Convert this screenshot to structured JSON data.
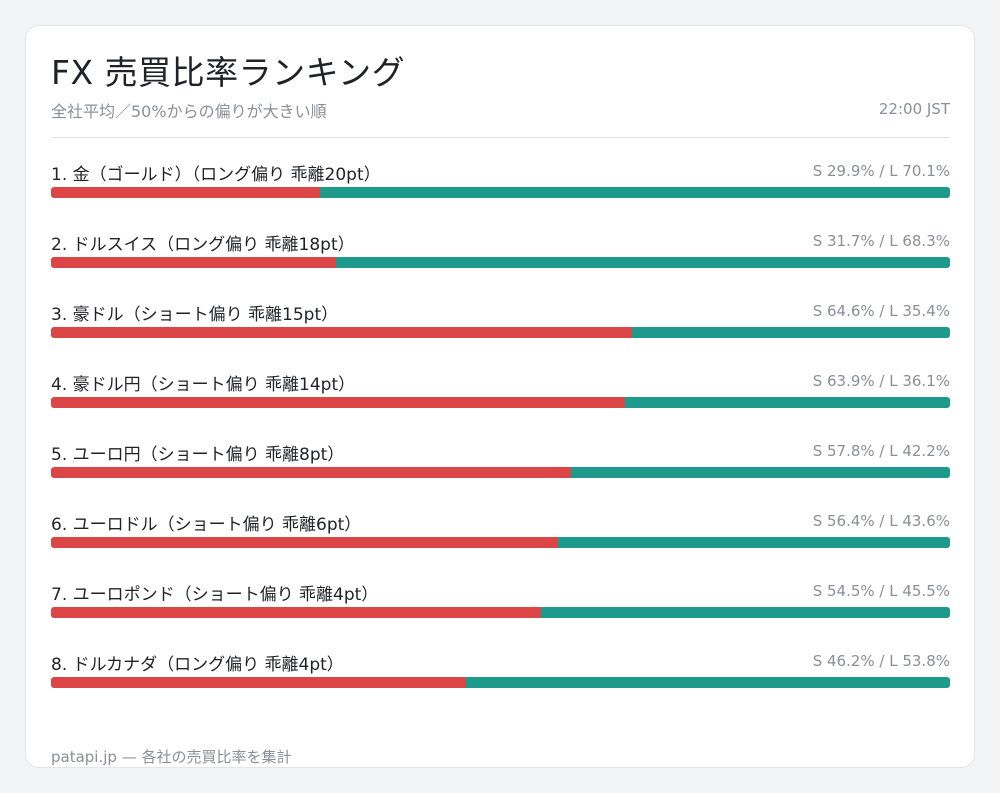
{
  "header": {
    "title": "FX 売買比率ランキング",
    "subtitle": "全社平均／50%からの偏りが大きい順",
    "time": "22:00 JST"
  },
  "colors": {
    "short": "#dc4545",
    "long": "#1e9a8c"
  },
  "chart_data": {
    "type": "bar",
    "orientation": "horizontal-stacked",
    "categories": [
      "1. 金（ゴールド）（ロング偏り 乖離20pt）",
      "2. ドルスイス（ロング偏り 乖離18pt）",
      "3. 豪ドル（ショート偏り 乖離15pt）",
      "4. 豪ドル円（ショート偏り 乖離14pt）",
      "5. ユーロ円（ショート偏り 乖離8pt）",
      "6. ユーロドル（ショート偏り 乖離6pt）",
      "7. ユーロポンド（ショート偏り 乖離4pt）",
      "8. ドルカナダ（ロング偏り 乖離4pt）"
    ],
    "series": [
      {
        "values": [
          29.9,
          31.7,
          64.6,
          63.9,
          57.8,
          56.4,
          54.5,
          46.2
        ]
      },
      {
        "values": [
          70.1,
          68.3,
          35.4,
          36.1,
          42.2,
          43.6,
          45.5,
          53.8
        ]
      }
    ],
    "value_labels": [
      "S 29.9% / L 70.1%",
      "S 31.7% / L 68.3%",
      "S 64.6% / L 35.4%",
      "S 63.9% / L 36.1%",
      "S 57.8% / L 42.2%",
      "S 56.4% / L 43.6%",
      "S 54.5% / L 45.5%",
      "S 46.2% / L 53.8%"
    ],
    "xlim": [
      0,
      100
    ]
  },
  "footer": {
    "text": "patapi.jp — 各社の売買比率を集計"
  }
}
